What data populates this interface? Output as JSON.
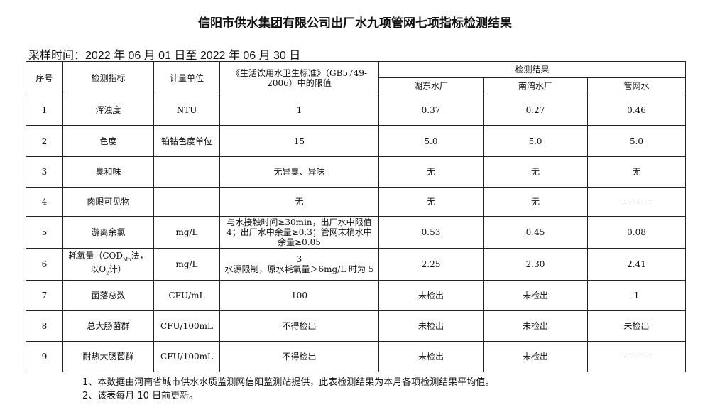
{
  "title": "信阳市供水集团有限公司出厂水九项管网七项指标检测结果",
  "period": "采样时间：2022 年 06 月 01 日至 2022 年 06 月 30 日",
  "headers": {
    "no": "序号",
    "indicator": "检测指标",
    "unit": "计量单位",
    "limit": "《生活饮用水卫生标准》（GB5749-2006）中的限值",
    "results": "检测结果",
    "sites": [
      "湖东水厂",
      "南湾水厂",
      "管网水"
    ]
  },
  "rows": [
    {
      "no": "1",
      "indicator": "浑浊度",
      "unit": "NTU",
      "limit": "1",
      "v": [
        "0.37",
        "0.27",
        "0.46"
      ]
    },
    {
      "no": "2",
      "indicator": "色度",
      "unit": "铂钴色度单位",
      "limit": "15",
      "v": [
        "5.0",
        "5.0",
        "5.0"
      ]
    },
    {
      "no": "3",
      "indicator": "臭和味",
      "unit": "",
      "limit": "无异臭、异味",
      "v": [
        "无",
        "无",
        "无"
      ]
    },
    {
      "no": "4",
      "indicator": "肉眼可见物",
      "unit": "",
      "limit": "无",
      "v": [
        "无",
        "无",
        "-----------"
      ]
    },
    {
      "no": "5",
      "indicator": "游离余氯",
      "unit": "mg/L",
      "limit": "与水接触时间≥30min，出厂水中限值4；出厂水中余量≥0.3；管网末梢水中余量≥0.05",
      "v": [
        "0.53",
        "0.45",
        "0.08"
      ]
    },
    {
      "no": "6",
      "indicator_a": "耗氧量（COD",
      "indicator_sub": "Mn",
      "indicator_b": "法，以O",
      "indicator_sub2": "2",
      "indicator_c": "计）",
      "unit": "mg/L",
      "limit_a": "3",
      "limit_b": "水源限制，原水耗氧量＞6mg/L 时为 5",
      "v": [
        "2.25",
        "2.30",
        "2.41"
      ]
    },
    {
      "no": "7",
      "indicator": "菌落总数",
      "unit": "CFU/mL",
      "limit": "100",
      "v": [
        "未检出",
        "未检出",
        "1"
      ]
    },
    {
      "no": "8",
      "indicator": "总大肠菌群",
      "unit": "CFU/100mL",
      "limit": "不得检出",
      "v": [
        "未检出",
        "未检出",
        "未检出"
      ]
    },
    {
      "no": "9",
      "indicator": "耐热大肠菌群",
      "unit": "CFU/100mL",
      "limit": "不得检出",
      "v": [
        "未检出",
        "未检出",
        "-----------"
      ]
    }
  ],
  "notes": [
    "1、本数据由河南省城市供水水质监测网信阳监测站提供，此表检测结果为本月各项检测结果平均值。",
    "2、该表每月 10 日前更新。"
  ]
}
